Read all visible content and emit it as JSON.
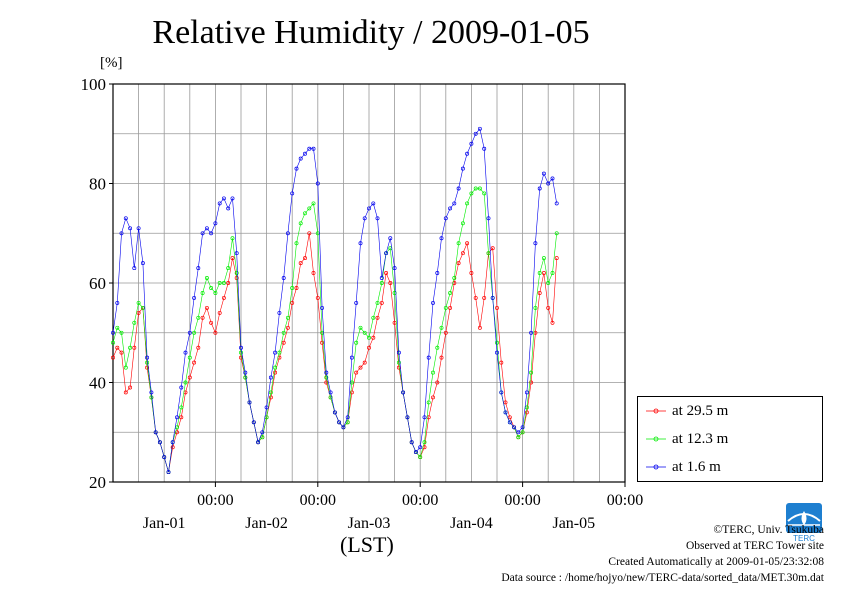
{
  "title": "Relative Humidity / 2009-01-05",
  "unit_label": "[%]",
  "xlabel": "(LST)",
  "credits": {
    "copyright": "©TERC, Univ. Tsukuba",
    "observed": "Observed at TERC Tower site",
    "created": "Created Automatically at 2009-01-05/23:32:08",
    "source": "Data source : /home/hojyo/new/TERC-data/sorted_data/MET.30m.dat"
  },
  "logo_text": "TERC",
  "chart_data": {
    "type": "line",
    "ylim": [
      20,
      100
    ],
    "yticks": [
      20,
      40,
      60,
      80,
      100
    ],
    "xlim": [
      0,
      120
    ],
    "xticks": [
      {
        "x": 24,
        "time": "00:00",
        "date": "Jan-01"
      },
      {
        "x": 48,
        "time": "00:00",
        "date": "Jan-02"
      },
      {
        "x": 72,
        "time": "00:00",
        "date": "Jan-03"
      },
      {
        "x": 96,
        "time": "00:00",
        "date": "Jan-04"
      },
      {
        "x": 120,
        "time": "00:00",
        "date": "Jan-05"
      }
    ],
    "grid": true,
    "legend_position": "right",
    "series": [
      {
        "name": "at 29.5 m",
        "color": "#ff0000",
        "points": [
          [
            0,
            45
          ],
          [
            1,
            47
          ],
          [
            2,
            46
          ],
          [
            3,
            38
          ],
          [
            4,
            39
          ],
          [
            5,
            47
          ],
          [
            6,
            54
          ],
          [
            7,
            55
          ],
          [
            8,
            43
          ],
          [
            9,
            37
          ],
          [
            10,
            30
          ],
          [
            11,
            28
          ],
          [
            12,
            25
          ],
          [
            13,
            22
          ],
          [
            14,
            27
          ],
          [
            15,
            30
          ],
          [
            16,
            33
          ],
          [
            17,
            38
          ],
          [
            18,
            41
          ],
          [
            19,
            44
          ],
          [
            20,
            47
          ],
          [
            21,
            53
          ],
          [
            22,
            55
          ],
          [
            23,
            52
          ],
          [
            24,
            50
          ],
          [
            25,
            54
          ],
          [
            26,
            57
          ],
          [
            27,
            60
          ],
          [
            28,
            65
          ],
          [
            29,
            61
          ],
          [
            30,
            45
          ],
          [
            31,
            41
          ],
          [
            32,
            36
          ],
          [
            33,
            32
          ],
          [
            34,
            28
          ],
          [
            35,
            29
          ],
          [
            36,
            33
          ],
          [
            37,
            37
          ],
          [
            38,
            42
          ],
          [
            39,
            45
          ],
          [
            40,
            48
          ],
          [
            41,
            51
          ],
          [
            42,
            56
          ],
          [
            43,
            59
          ],
          [
            44,
            64
          ],
          [
            45,
            65
          ],
          [
            46,
            70
          ],
          [
            47,
            62
          ],
          [
            48,
            57
          ],
          [
            49,
            48
          ],
          [
            50,
            40
          ],
          [
            51,
            37
          ],
          [
            52,
            34
          ],
          [
            53,
            32
          ],
          [
            54,
            31
          ],
          [
            55,
            32
          ],
          [
            56,
            38
          ],
          [
            57,
            42
          ],
          [
            58,
            43
          ],
          [
            59,
            44
          ],
          [
            60,
            47
          ],
          [
            61,
            49
          ],
          [
            62,
            53
          ],
          [
            63,
            56
          ],
          [
            64,
            62
          ],
          [
            65,
            60
          ],
          [
            66,
            52
          ],
          [
            67,
            43
          ],
          [
            68,
            38
          ],
          [
            69,
            33
          ],
          [
            70,
            28
          ],
          [
            71,
            26
          ],
          [
            72,
            25
          ],
          [
            73,
            27
          ],
          [
            74,
            33
          ],
          [
            75,
            37
          ],
          [
            76,
            40
          ],
          [
            77,
            45
          ],
          [
            78,
            50
          ],
          [
            79,
            55
          ],
          [
            80,
            60
          ],
          [
            81,
            64
          ],
          [
            82,
            66
          ],
          [
            83,
            68
          ],
          [
            84,
            62
          ],
          [
            85,
            57
          ],
          [
            86,
            51
          ],
          [
            87,
            57
          ],
          [
            88,
            66
          ],
          [
            89,
            67
          ],
          [
            90,
            55
          ],
          [
            91,
            44
          ],
          [
            92,
            36
          ],
          [
            93,
            33
          ],
          [
            94,
            31
          ],
          [
            95,
            29
          ],
          [
            96,
            30
          ],
          [
            97,
            34
          ],
          [
            98,
            40
          ],
          [
            99,
            50
          ],
          [
            100,
            58
          ],
          [
            101,
            62
          ],
          [
            102,
            55
          ],
          [
            103,
            52
          ],
          [
            104,
            65
          ]
        ]
      },
      {
        "name": "at 12.3 m",
        "color": "#00ee00",
        "points": [
          [
            0,
            48
          ],
          [
            1,
            51
          ],
          [
            2,
            50
          ],
          [
            3,
            43
          ],
          [
            4,
            47
          ],
          [
            5,
            52
          ],
          [
            6,
            56
          ],
          [
            7,
            55
          ],
          [
            8,
            44
          ],
          [
            9,
            37
          ],
          [
            10,
            30
          ],
          [
            11,
            28
          ],
          [
            12,
            25
          ],
          [
            13,
            22
          ],
          [
            14,
            28
          ],
          [
            15,
            31
          ],
          [
            16,
            35
          ],
          [
            17,
            40
          ],
          [
            18,
            45
          ],
          [
            19,
            50
          ],
          [
            20,
            53
          ],
          [
            21,
            58
          ],
          [
            22,
            61
          ],
          [
            23,
            59
          ],
          [
            24,
            58
          ],
          [
            25,
            60
          ],
          [
            26,
            60
          ],
          [
            27,
            63
          ],
          [
            28,
            69
          ],
          [
            29,
            62
          ],
          [
            30,
            46
          ],
          [
            31,
            41
          ],
          [
            32,
            36
          ],
          [
            33,
            32
          ],
          [
            34,
            28
          ],
          [
            35,
            29
          ],
          [
            36,
            33
          ],
          [
            37,
            38
          ],
          [
            38,
            43
          ],
          [
            39,
            46
          ],
          [
            40,
            50
          ],
          [
            41,
            53
          ],
          [
            42,
            59
          ],
          [
            43,
            68
          ],
          [
            44,
            72
          ],
          [
            45,
            74
          ],
          [
            46,
            75
          ],
          [
            47,
            76
          ],
          [
            48,
            70
          ],
          [
            49,
            50
          ],
          [
            50,
            41
          ],
          [
            51,
            37
          ],
          [
            52,
            34
          ],
          [
            53,
            32
          ],
          [
            54,
            31
          ],
          [
            55,
            32
          ],
          [
            56,
            40
          ],
          [
            57,
            48
          ],
          [
            58,
            51
          ],
          [
            59,
            50
          ],
          [
            60,
            49
          ],
          [
            61,
            53
          ],
          [
            62,
            56
          ],
          [
            63,
            60
          ],
          [
            64,
            66
          ],
          [
            65,
            67
          ],
          [
            66,
            58
          ],
          [
            67,
            44
          ],
          [
            68,
            38
          ],
          [
            69,
            33
          ],
          [
            70,
            28
          ],
          [
            71,
            26
          ],
          [
            72,
            25
          ],
          [
            73,
            28
          ],
          [
            74,
            36
          ],
          [
            75,
            42
          ],
          [
            76,
            47
          ],
          [
            77,
            51
          ],
          [
            78,
            55
          ],
          [
            79,
            58
          ],
          [
            80,
            61
          ],
          [
            81,
            68
          ],
          [
            82,
            72
          ],
          [
            83,
            76
          ],
          [
            84,
            78
          ],
          [
            85,
            79
          ],
          [
            86,
            79
          ],
          [
            87,
            78
          ],
          [
            88,
            66
          ],
          [
            89,
            57
          ],
          [
            90,
            48
          ],
          [
            91,
            38
          ],
          [
            92,
            34
          ],
          [
            93,
            32
          ],
          [
            94,
            31
          ],
          [
            95,
            29
          ],
          [
            96,
            30
          ],
          [
            97,
            35
          ],
          [
            98,
            42
          ],
          [
            99,
            55
          ],
          [
            100,
            62
          ],
          [
            101,
            65
          ],
          [
            102,
            60
          ],
          [
            103,
            62
          ],
          [
            104,
            70
          ]
        ]
      },
      {
        "name": "at 1.6 m",
        "color": "#0000ee",
        "points": [
          [
            0,
            50
          ],
          [
            1,
            56
          ],
          [
            2,
            70
          ],
          [
            3,
            73
          ],
          [
            4,
            71
          ],
          [
            5,
            63
          ],
          [
            6,
            71
          ],
          [
            7,
            64
          ],
          [
            8,
            45
          ],
          [
            9,
            38
          ],
          [
            10,
            30
          ],
          [
            11,
            28
          ],
          [
            12,
            25
          ],
          [
            13,
            22
          ],
          [
            14,
            28
          ],
          [
            15,
            33
          ],
          [
            16,
            39
          ],
          [
            17,
            46
          ],
          [
            18,
            50
          ],
          [
            19,
            57
          ],
          [
            20,
            63
          ],
          [
            21,
            70
          ],
          [
            22,
            71
          ],
          [
            23,
            70
          ],
          [
            24,
            72
          ],
          [
            25,
            76
          ],
          [
            26,
            77
          ],
          [
            27,
            75
          ],
          [
            28,
            77
          ],
          [
            29,
            66
          ],
          [
            30,
            47
          ],
          [
            31,
            42
          ],
          [
            32,
            36
          ],
          [
            33,
            32
          ],
          [
            34,
            28
          ],
          [
            35,
            30
          ],
          [
            36,
            35
          ],
          [
            37,
            41
          ],
          [
            38,
            46
          ],
          [
            39,
            54
          ],
          [
            40,
            61
          ],
          [
            41,
            70
          ],
          [
            42,
            78
          ],
          [
            43,
            83
          ],
          [
            44,
            85
          ],
          [
            45,
            86
          ],
          [
            46,
            87
          ],
          [
            47,
            87
          ],
          [
            48,
            80
          ],
          [
            49,
            55
          ],
          [
            50,
            42
          ],
          [
            51,
            38
          ],
          [
            52,
            34
          ],
          [
            53,
            32
          ],
          [
            54,
            31
          ],
          [
            55,
            33
          ],
          [
            56,
            45
          ],
          [
            57,
            56
          ],
          [
            58,
            68
          ],
          [
            59,
            73
          ],
          [
            60,
            75
          ],
          [
            61,
            76
          ],
          [
            62,
            73
          ],
          [
            63,
            61
          ],
          [
            64,
            66
          ],
          [
            65,
            69
          ],
          [
            66,
            63
          ],
          [
            67,
            46
          ],
          [
            68,
            38
          ],
          [
            69,
            33
          ],
          [
            70,
            28
          ],
          [
            71,
            26
          ],
          [
            72,
            27
          ],
          [
            73,
            33
          ],
          [
            74,
            45
          ],
          [
            75,
            56
          ],
          [
            76,
            62
          ],
          [
            77,
            69
          ],
          [
            78,
            73
          ],
          [
            79,
            75
          ],
          [
            80,
            76
          ],
          [
            81,
            79
          ],
          [
            82,
            83
          ],
          [
            83,
            86
          ],
          [
            84,
            88
          ],
          [
            85,
            90
          ],
          [
            86,
            91
          ],
          [
            87,
            87
          ],
          [
            88,
            73
          ],
          [
            89,
            57
          ],
          [
            90,
            46
          ],
          [
            91,
            38
          ],
          [
            92,
            34
          ],
          [
            93,
            32
          ],
          [
            94,
            31
          ],
          [
            95,
            30
          ],
          [
            96,
            31
          ],
          [
            97,
            38
          ],
          [
            98,
            50
          ],
          [
            99,
            68
          ],
          [
            100,
            79
          ],
          [
            101,
            82
          ],
          [
            102,
            80
          ],
          [
            103,
            81
          ],
          [
            104,
            76
          ]
        ]
      }
    ]
  }
}
